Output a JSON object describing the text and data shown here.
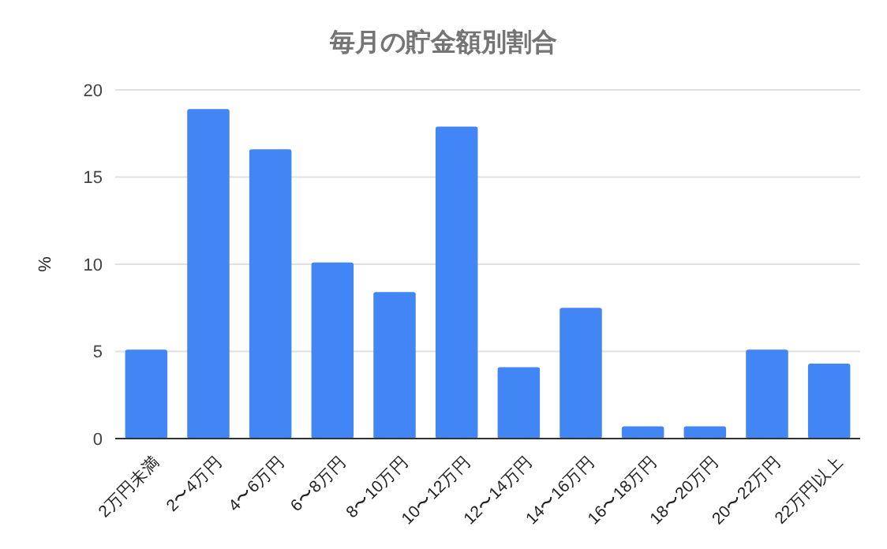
{
  "chart_data": {
    "type": "bar",
    "title": "毎月の貯金額別割合",
    "ylabel": "%",
    "categories": [
      "2万円未満",
      "2〜4万円",
      "4〜6万円",
      "6〜8万円",
      "8〜10万円",
      "10〜12万円",
      "12〜14万円",
      "14〜16万円",
      "16〜18万円",
      "18〜20万円",
      "20〜22万円",
      "22万円以上"
    ],
    "values": [
      5.1,
      18.9,
      16.6,
      10.1,
      8.4,
      17.9,
      4.1,
      7.5,
      0.7,
      0.7,
      5.1,
      4.3
    ],
    "color": "#4285f4",
    "ylim": [
      0,
      20
    ],
    "yticks": [
      0,
      5,
      10,
      15,
      20
    ],
    "grid": "y"
  }
}
